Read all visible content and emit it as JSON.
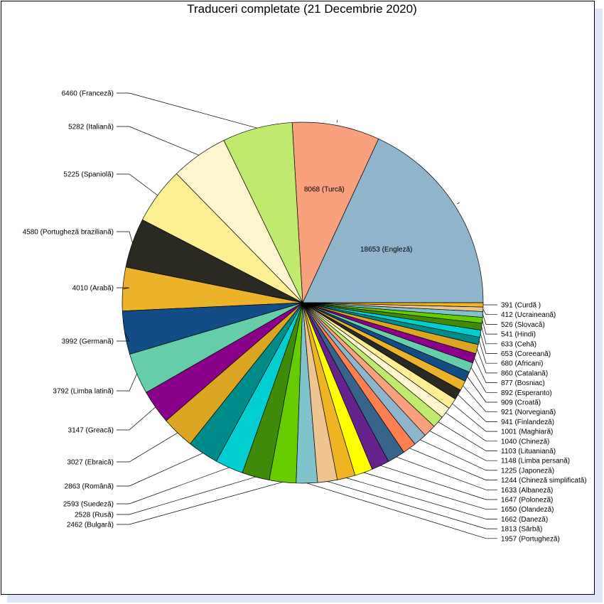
{
  "chart_data": {
    "type": "pie",
    "title": "Traduceri completate (21 Decembrie 2020)",
    "slices": [
      {
        "value": 18653,
        "language": "Engleză",
        "color": "#8fb5cc"
      },
      {
        "value": 8068,
        "language": "Turcă",
        "color": "#f9a07c"
      },
      {
        "value": 6460,
        "language": "Franceză",
        "color": "#c0ea6e"
      },
      {
        "value": 5282,
        "language": "Italiană",
        "color": "#fdf6cf"
      },
      {
        "value": 5225,
        "language": "Spaniolă",
        "color": "#fdf093"
      },
      {
        "value": 4580,
        "language": "Portugheză braziliană",
        "color": "#2a2a22"
      },
      {
        "value": 4010,
        "language": "Arabă",
        "color": "#ecb22a"
      },
      {
        "value": 3992,
        "language": "Germană",
        "color": "#124d88"
      },
      {
        "value": 3792,
        "language": "Limba latină",
        "color": "#66cdaa"
      },
      {
        "value": 3147,
        "language": "Greacă",
        "color": "#8b008b"
      },
      {
        "value": 3027,
        "language": "Ebraică",
        "color": "#daa520"
      },
      {
        "value": 2863,
        "language": "Română",
        "color": "#008b8b"
      },
      {
        "value": 2593,
        "language": "Suedeză",
        "color": "#00ced1"
      },
      {
        "value": 2528,
        "language": "Rusă",
        "color": "#3f8b08"
      },
      {
        "value": 2462,
        "language": "Bulgară",
        "color": "#66cc00"
      },
      {
        "value": 1957,
        "language": "Portugheză",
        "color": "#7fc2cb"
      },
      {
        "value": 1813,
        "language": "Sârbă",
        "color": "#eec591"
      },
      {
        "value": 1662,
        "language": "Daneză",
        "color": "#eeb422"
      },
      {
        "value": 1650,
        "language": "Olandeză",
        "color": "#ffff00"
      },
      {
        "value": 1647,
        "language": "Poloneză",
        "color": "#68228b"
      },
      {
        "value": 1633,
        "language": "Albaneză",
        "color": "#36648b"
      },
      {
        "value": 1244,
        "language": "Chineză simplificată",
        "color": "#ff7f50"
      },
      {
        "value": 1225,
        "language": "Japoneză",
        "color": "#8fb5cc"
      },
      {
        "value": 1148,
        "language": "Limba persană",
        "color": "#f9a07c"
      },
      {
        "value": 1103,
        "language": "Lituaniană",
        "color": "#c0ea6e"
      },
      {
        "value": 1040,
        "language": "Chineză",
        "color": "#fdf6cf"
      },
      {
        "value": 1001,
        "language": "Maghiară",
        "color": "#fdf093"
      },
      {
        "value": 941,
        "language": "Finlandeză",
        "color": "#2a2a22"
      },
      {
        "value": 921,
        "language": "Norvegiană",
        "color": "#ecb22a"
      },
      {
        "value": 909,
        "language": "Croată",
        "color": "#124d88"
      },
      {
        "value": 892,
        "language": "Esperanto",
        "color": "#66cdaa"
      },
      {
        "value": 877,
        "language": "Bosniac",
        "color": "#8b008b"
      },
      {
        "value": 860,
        "language": "Catalană",
        "color": "#daa520"
      },
      {
        "value": 680,
        "language": "Africani",
        "color": "#008b8b"
      },
      {
        "value": 653,
        "language": "Coreeană",
        "color": "#00ced1"
      },
      {
        "value": 633,
        "language": "Cehă",
        "color": "#3f8b08"
      },
      {
        "value": 541,
        "language": "Hindi",
        "color": "#66cc00"
      },
      {
        "value": 526,
        "language": "Slovacă",
        "color": "#7fc2cb"
      },
      {
        "value": 412,
        "language": "Ucraineană",
        "color": "#eec591"
      },
      {
        "value": 391,
        "language": "Curdă ",
        "color": "#eeb422"
      }
    ],
    "labels": {
      "inside": [
        "18653 (Engleză)",
        "8068 (Turcă)"
      ],
      "left": [
        "6460 (Franceză)",
        "5282 (Italiană)",
        "5225 (Spaniolă)",
        "4580 (Portugheză braziliană)",
        "4010 (Arabă)",
        "3992 (Germană)",
        "3792 (Limba latină)",
        "3147 (Greacă)",
        "3027 (Ebraică)",
        "2863 (Română)",
        "2593 (Suedeză)",
        "2528 (Rusă)",
        "2462 (Bulgară)"
      ],
      "right": [
        "391  (Curdă )",
        "412  (Ucraineană)",
        "526  (Slovacă)",
        "541  (Hindi)",
        "633  (Cehă)",
        "653  (Coreeană)",
        "680  (Africani)",
        "860  (Catalană)",
        "877  (Bosniac)",
        "892  (Esperanto)",
        "909  (Croată)",
        "921  (Norvegiană)",
        "941  (Finlandeză)",
        "1001  (Maghiară)",
        "1040  (Chineză)",
        "1103  (Lituaniană)",
        "1148  (Limba persană)",
        "1225  (Japoneză)",
        "1244  (Chineză simplificată)",
        "1633  (Albaneză)",
        "1647  (Poloneză)",
        "1650  (Olandeză)",
        "1662  (Daneză)",
        "1813  (Sârbă)",
        "1957  (Portugheză)"
      ]
    },
    "start_angle_deg": 0,
    "direction": "counter-clockwise",
    "legend": "none"
  }
}
